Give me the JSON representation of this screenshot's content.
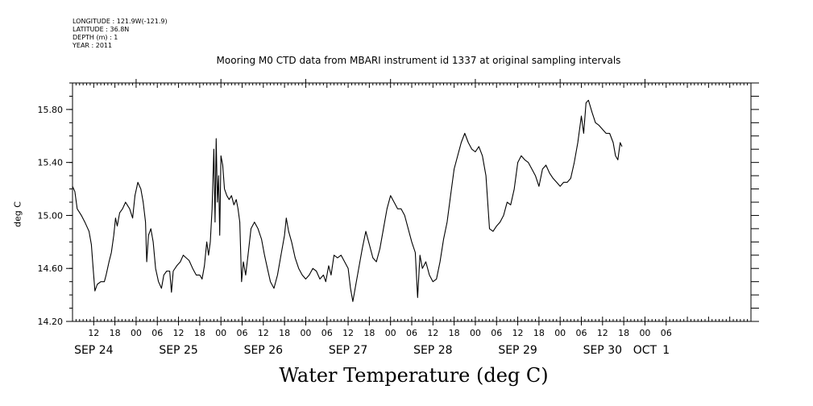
{
  "metadata": {
    "longitude": "LONGITUDE : 121.9W(-121.9)",
    "latitude": "LATITUDE : 36.8N",
    "depth": "DEPTH (m) : 1",
    "year": "YEAR : 2011"
  },
  "chart_data": {
    "type": "line",
    "title": "Mooring M0 CTD data from MBARI instrument id 1337 at original sampling intervals",
    "xlabel": "Water Temperature (deg C)",
    "ylabel": "deg C",
    "ylim": [
      14.2,
      16.0
    ],
    "y_ticks": [
      "14.20",
      "14.60",
      "15.00",
      "15.40",
      "15.80"
    ],
    "xlim": [
      "2011-09-23T06:00",
      "2011-10-01T06:00"
    ],
    "hour_ticks": [
      {
        "t": "2011-09-23T12:00",
        "label": "12"
      },
      {
        "t": "2011-09-23T18:00",
        "label": "18"
      },
      {
        "t": "2011-09-24T00:00",
        "label": "00"
      },
      {
        "t": "2011-09-24T06:00",
        "label": "06"
      },
      {
        "t": "2011-09-24T12:00",
        "label": "12"
      },
      {
        "t": "2011-09-24T18:00",
        "label": "18"
      },
      {
        "t": "2011-09-25T00:00",
        "label": "00"
      },
      {
        "t": "2011-09-25T06:00",
        "label": "06"
      },
      {
        "t": "2011-09-25T12:00",
        "label": "12"
      },
      {
        "t": "2011-09-25T18:00",
        "label": "18"
      },
      {
        "t": "2011-09-26T00:00",
        "label": "00"
      },
      {
        "t": "2011-09-26T06:00",
        "label": "06"
      },
      {
        "t": "2011-09-26T12:00",
        "label": "12"
      },
      {
        "t": "2011-09-26T18:00",
        "label": "18"
      },
      {
        "t": "2011-09-27T00:00",
        "label": "00"
      },
      {
        "t": "2011-09-27T06:00",
        "label": "06"
      },
      {
        "t": "2011-09-27T12:00",
        "label": "12"
      },
      {
        "t": "2011-09-27T18:00",
        "label": "18"
      },
      {
        "t": "2011-09-28T00:00",
        "label": "00"
      },
      {
        "t": "2011-09-28T06:00",
        "label": "06"
      },
      {
        "t": "2011-09-28T12:00",
        "label": "12"
      },
      {
        "t": "2011-09-28T18:00",
        "label": "18"
      },
      {
        "t": "2011-09-29T00:00",
        "label": "00"
      },
      {
        "t": "2011-09-29T06:00",
        "label": "06"
      },
      {
        "t": "2011-09-29T12:00",
        "label": "12"
      },
      {
        "t": "2011-09-29T18:00",
        "label": "18"
      },
      {
        "t": "2011-09-30T00:00",
        "label": "00"
      },
      {
        "t": "2011-09-30T06:00",
        "label": "06"
      }
    ],
    "day_labels": [
      {
        "t": "2011-09-23T12:00",
        "label": "SEP 24"
      },
      {
        "t": "2011-09-24T12:00",
        "label": "SEP 25"
      },
      {
        "t": "2011-09-25T12:00",
        "label": "SEP 26"
      },
      {
        "t": "2011-09-26T12:00",
        "label": "SEP 27"
      },
      {
        "t": "2011-09-27T12:00",
        "label": "SEP 28"
      },
      {
        "t": "2011-09-28T12:00",
        "label": "SEP 29"
      },
      {
        "t": "2011-09-29T12:00",
        "label": "SEP 30"
      },
      {
        "t": "2011-09-30T00:00",
        "label": "OCT"
      },
      {
        "t": "2011-09-30T06:00",
        "label": "1"
      }
    ],
    "series": [
      {
        "color": "#000000",
        "points": [
          [
            "2011-09-23T06:00",
            15.22
          ],
          [
            "2011-09-23T06:40",
            15.18
          ],
          [
            "2011-09-23T07:20",
            15.05
          ],
          [
            "2011-09-23T08:30",
            15.0
          ],
          [
            "2011-09-23T09:30",
            14.95
          ],
          [
            "2011-09-23T10:40",
            14.88
          ],
          [
            "2011-09-23T11:20",
            14.78
          ],
          [
            "2011-09-23T11:50",
            14.6
          ],
          [
            "2011-09-23T12:20",
            14.43
          ],
          [
            "2011-09-23T13:00",
            14.48
          ],
          [
            "2011-09-23T14:00",
            14.5
          ],
          [
            "2011-09-23T15:00",
            14.5
          ],
          [
            "2011-09-23T15:30",
            14.55
          ],
          [
            "2011-09-23T16:20",
            14.65
          ],
          [
            "2011-09-23T17:00",
            14.72
          ],
          [
            "2011-09-23T17:40",
            14.85
          ],
          [
            "2011-09-23T18:10",
            14.98
          ],
          [
            "2011-09-23T18:40",
            14.92
          ],
          [
            "2011-09-23T19:20",
            15.02
          ],
          [
            "2011-09-23T20:10",
            15.05
          ],
          [
            "2011-09-23T21:00",
            15.1
          ],
          [
            "2011-09-23T22:10",
            15.05
          ],
          [
            "2011-09-23T23:00",
            14.98
          ],
          [
            "2011-09-23T23:40",
            15.15
          ],
          [
            "2011-09-24T00:30",
            15.25
          ],
          [
            "2011-09-24T01:20",
            15.2
          ],
          [
            "2011-09-24T02:00",
            15.1
          ],
          [
            "2011-09-24T02:40",
            14.95
          ],
          [
            "2011-09-24T03:00",
            14.65
          ],
          [
            "2011-09-24T03:30",
            14.85
          ],
          [
            "2011-09-24T04:10",
            14.9
          ],
          [
            "2011-09-24T04:50",
            14.8
          ],
          [
            "2011-09-24T05:30",
            14.6
          ],
          [
            "2011-09-24T06:20",
            14.5
          ],
          [
            "2011-09-24T07:10",
            14.45
          ],
          [
            "2011-09-24T07:50",
            14.55
          ],
          [
            "2011-09-24T08:40",
            14.58
          ],
          [
            "2011-09-24T09:30",
            14.58
          ],
          [
            "2011-09-24T10:00",
            14.42
          ],
          [
            "2011-09-24T10:30",
            14.58
          ],
          [
            "2011-09-24T11:30",
            14.62
          ],
          [
            "2011-09-24T12:30",
            14.65
          ],
          [
            "2011-09-24T13:20",
            14.7
          ],
          [
            "2011-09-24T14:10",
            14.68
          ],
          [
            "2011-09-24T15:00",
            14.66
          ],
          [
            "2011-09-24T16:00",
            14.6
          ],
          [
            "2011-09-24T17:00",
            14.55
          ],
          [
            "2011-09-24T18:00",
            14.55
          ],
          [
            "2011-09-24T18:40",
            14.52
          ],
          [
            "2011-09-24T19:20",
            14.62
          ],
          [
            "2011-09-24T20:00",
            14.8
          ],
          [
            "2011-09-24T20:30",
            14.7
          ],
          [
            "2011-09-24T21:00",
            14.8
          ],
          [
            "2011-09-24T21:30",
            15.05
          ],
          [
            "2011-09-24T22:00",
            15.5
          ],
          [
            "2011-09-24T22:20",
            14.95
          ],
          [
            "2011-09-24T22:40",
            15.58
          ],
          [
            "2011-09-24T23:00",
            15.1
          ],
          [
            "2011-09-24T23:20",
            15.3
          ],
          [
            "2011-09-24T23:40",
            14.85
          ],
          [
            "2011-09-25T00:00",
            15.45
          ],
          [
            "2011-09-25T00:30",
            15.38
          ],
          [
            "2011-09-25T01:00",
            15.2
          ],
          [
            "2011-09-25T01:40",
            15.15
          ],
          [
            "2011-09-25T02:20",
            15.12
          ],
          [
            "2011-09-25T03:00",
            15.15
          ],
          [
            "2011-09-25T03:40",
            15.08
          ],
          [
            "2011-09-25T04:20",
            15.12
          ],
          [
            "2011-09-25T04:50",
            15.05
          ],
          [
            "2011-09-25T05:20",
            14.95
          ],
          [
            "2011-09-25T05:50",
            14.5
          ],
          [
            "2011-09-25T06:20",
            14.65
          ],
          [
            "2011-09-25T07:00",
            14.55
          ],
          [
            "2011-09-25T07:40",
            14.7
          ],
          [
            "2011-09-25T08:30",
            14.9
          ],
          [
            "2011-09-25T09:30",
            14.95
          ],
          [
            "2011-09-25T10:30",
            14.9
          ],
          [
            "2011-09-25T11:30",
            14.82
          ],
          [
            "2011-09-25T12:20",
            14.7
          ],
          [
            "2011-09-25T13:10",
            14.6
          ],
          [
            "2011-09-25T14:00",
            14.5
          ],
          [
            "2011-09-25T15:00",
            14.45
          ],
          [
            "2011-09-25T16:00",
            14.55
          ],
          [
            "2011-09-25T17:00",
            14.7
          ],
          [
            "2011-09-25T18:00",
            14.85
          ],
          [
            "2011-09-25T18:30",
            14.98
          ],
          [
            "2011-09-25T19:10",
            14.88
          ],
          [
            "2011-09-25T20:00",
            14.8
          ],
          [
            "2011-09-25T21:00",
            14.68
          ],
          [
            "2011-09-25T22:00",
            14.6
          ],
          [
            "2011-09-25T23:00",
            14.55
          ],
          [
            "2011-09-26T00:00",
            14.52
          ],
          [
            "2011-09-26T01:00",
            14.55
          ],
          [
            "2011-09-26T02:00",
            14.6
          ],
          [
            "2011-09-26T03:00",
            14.58
          ],
          [
            "2011-09-26T04:00",
            14.52
          ],
          [
            "2011-09-26T05:00",
            14.55
          ],
          [
            "2011-09-26T05:40",
            14.5
          ],
          [
            "2011-09-26T06:30",
            14.62
          ],
          [
            "2011-09-26T07:10",
            14.55
          ],
          [
            "2011-09-26T08:00",
            14.7
          ],
          [
            "2011-09-26T09:00",
            14.68
          ],
          [
            "2011-09-26T10:00",
            14.7
          ],
          [
            "2011-09-26T11:00",
            14.65
          ],
          [
            "2011-09-26T12:00",
            14.6
          ],
          [
            "2011-09-26T12:40",
            14.45
          ],
          [
            "2011-09-26T13:20",
            14.35
          ],
          [
            "2011-09-26T14:00",
            14.45
          ],
          [
            "2011-09-26T15:00",
            14.6
          ],
          [
            "2011-09-26T16:00",
            14.75
          ],
          [
            "2011-09-26T17:00",
            14.88
          ],
          [
            "2011-09-26T18:00",
            14.78
          ],
          [
            "2011-09-26T19:00",
            14.68
          ],
          [
            "2011-09-26T20:00",
            14.65
          ],
          [
            "2011-09-26T21:00",
            14.75
          ],
          [
            "2011-09-26T22:00",
            14.9
          ],
          [
            "2011-09-26T23:00",
            15.05
          ],
          [
            "2011-09-27T00:00",
            15.15
          ],
          [
            "2011-09-27T01:00",
            15.1
          ],
          [
            "2011-09-27T02:00",
            15.05
          ],
          [
            "2011-09-27T03:00",
            15.05
          ],
          [
            "2011-09-27T04:00",
            15.0
          ],
          [
            "2011-09-27T05:00",
            14.9
          ],
          [
            "2011-09-27T06:00",
            14.8
          ],
          [
            "2011-09-27T07:00",
            14.72
          ],
          [
            "2011-09-27T07:40",
            14.38
          ],
          [
            "2011-09-27T08:20",
            14.7
          ],
          [
            "2011-09-27T09:00",
            14.6
          ],
          [
            "2011-09-27T10:00",
            14.65
          ],
          [
            "2011-09-27T11:00",
            14.55
          ],
          [
            "2011-09-27T12:00",
            14.5
          ],
          [
            "2011-09-27T13:00",
            14.52
          ],
          [
            "2011-09-27T14:00",
            14.65
          ],
          [
            "2011-09-27T15:00",
            14.82
          ],
          [
            "2011-09-27T16:00",
            14.95
          ],
          [
            "2011-09-27T17:00",
            15.15
          ],
          [
            "2011-09-27T18:00",
            15.35
          ],
          [
            "2011-09-27T19:00",
            15.45
          ],
          [
            "2011-09-27T20:00",
            15.55
          ],
          [
            "2011-09-27T21:00",
            15.62
          ],
          [
            "2011-09-27T22:00",
            15.55
          ],
          [
            "2011-09-27T23:00",
            15.5
          ],
          [
            "2011-09-28T00:00",
            15.48
          ],
          [
            "2011-09-28T01:00",
            15.52
          ],
          [
            "2011-09-28T02:00",
            15.45
          ],
          [
            "2011-09-28T03:00",
            15.3
          ],
          [
            "2011-09-28T04:00",
            14.9
          ],
          [
            "2011-09-28T05:00",
            14.88
          ],
          [
            "2011-09-28T06:00",
            14.92
          ],
          [
            "2011-09-28T07:00",
            14.95
          ],
          [
            "2011-09-28T08:00",
            15.0
          ],
          [
            "2011-09-28T09:00",
            15.1
          ],
          [
            "2011-09-28T10:00",
            15.08
          ],
          [
            "2011-09-28T11:00",
            15.2
          ],
          [
            "2011-09-28T12:00",
            15.4
          ],
          [
            "2011-09-28T13:00",
            15.45
          ],
          [
            "2011-09-28T14:00",
            15.42
          ],
          [
            "2011-09-28T15:00",
            15.4
          ],
          [
            "2011-09-28T16:00",
            15.35
          ],
          [
            "2011-09-28T17:00",
            15.3
          ],
          [
            "2011-09-28T18:00",
            15.22
          ],
          [
            "2011-09-28T19:00",
            15.35
          ],
          [
            "2011-09-28T20:00",
            15.38
          ],
          [
            "2011-09-28T21:00",
            15.32
          ],
          [
            "2011-09-28T22:00",
            15.28
          ],
          [
            "2011-09-28T23:00",
            15.25
          ],
          [
            "2011-09-29T00:00",
            15.22
          ],
          [
            "2011-09-29T01:00",
            15.25
          ],
          [
            "2011-09-29T02:00",
            15.25
          ],
          [
            "2011-09-29T03:00",
            15.28
          ],
          [
            "2011-09-29T04:00",
            15.4
          ],
          [
            "2011-09-29T05:00",
            15.55
          ],
          [
            "2011-09-29T06:00",
            15.75
          ],
          [
            "2011-09-29T06:40",
            15.62
          ],
          [
            "2011-09-29T07:20",
            15.85
          ],
          [
            "2011-09-29T08:00",
            15.87
          ],
          [
            "2011-09-29T09:00",
            15.78
          ],
          [
            "2011-09-29T10:00",
            15.7
          ],
          [
            "2011-09-29T11:00",
            15.68
          ],
          [
            "2011-09-29T12:00",
            15.65
          ],
          [
            "2011-09-29T13:00",
            15.62
          ],
          [
            "2011-09-29T14:00",
            15.62
          ],
          [
            "2011-09-29T15:00",
            15.55
          ],
          [
            "2011-09-29T15:40",
            15.45
          ],
          [
            "2011-09-29T16:20",
            15.42
          ],
          [
            "2011-09-29T17:00",
            15.55
          ],
          [
            "2011-09-29T17:30",
            15.52
          ]
        ]
      }
    ]
  }
}
